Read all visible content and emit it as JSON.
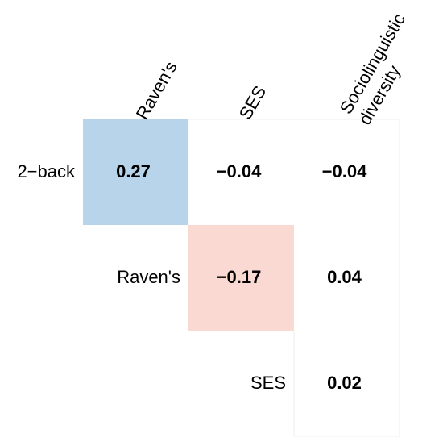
{
  "chart_data": {
    "type": "heatmap",
    "columns": [
      "Raven's",
      "SES",
      "Sociolinguistic diversity"
    ],
    "column_label_lines": [
      [
        "Raven's"
      ],
      [
        "SES"
      ],
      [
        "Sociolinguistic",
        "diversity"
      ]
    ],
    "rows": [
      "2−back",
      "Raven's",
      "SES"
    ],
    "cells": [
      {
        "row": 0,
        "col": 0,
        "value": 0.27,
        "label": "0.27",
        "highlight": "positive"
      },
      {
        "row": 0,
        "col": 1,
        "value": -0.04,
        "label": "−0.04",
        "highlight": "none"
      },
      {
        "row": 0,
        "col": 2,
        "value": -0.04,
        "label": "−0.04",
        "highlight": "none"
      },
      {
        "row": 1,
        "col": 1,
        "value": -0.17,
        "label": "−0.17",
        "highlight": "negative"
      },
      {
        "row": 1,
        "col": 2,
        "value": 0.04,
        "label": "0.04",
        "highlight": "none"
      },
      {
        "row": 2,
        "col": 2,
        "value": 0.02,
        "label": "0.02",
        "highlight": "none"
      }
    ],
    "colors": {
      "positive": "#b7d4ea",
      "negative": "#fbd9d3",
      "border": "#eeeeee",
      "text": "#000000"
    }
  }
}
